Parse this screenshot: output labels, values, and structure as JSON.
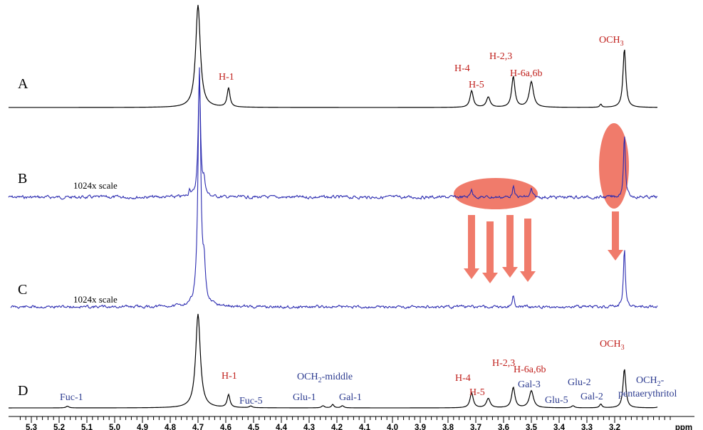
{
  "chart_data": {
    "type": "line",
    "title": "",
    "xlabel": "ppm",
    "xlim": [
      5.33,
      3.0
    ],
    "x_inverted": true,
    "x_ticks": [
      5.3,
      5.2,
      5.1,
      5.0,
      4.9,
      4.8,
      4.7,
      4.6,
      4.5,
      4.4,
      4.3,
      4.2,
      4.1,
      4.0,
      3.9,
      3.8,
      3.7,
      3.6,
      3.5,
      3.4,
      3.3,
      3.2
    ],
    "x_tick_labels": [
      "5.3",
      "5.2",
      "5.1",
      "5.0",
      "4.9",
      "4.8",
      "4.7",
      "4.6",
      "4.5",
      "4.4",
      "4.3",
      "4.2",
      "4.1",
      "4.0",
      "3.9",
      "3.8",
      "3.7",
      "3.6",
      "3.5",
      "3.4",
      "3.3",
      "3.2"
    ],
    "grid": false,
    "legend": "none",
    "spectra": [
      {
        "label": "A",
        "note": "",
        "color": "#000000",
        "peaks": [
          {
            "x": 4.7,
            "h": 1.6,
            "w": 0.01
          },
          {
            "x": 4.59,
            "h": 0.3,
            "w": 0.006
          },
          {
            "x": 3.715,
            "h": 0.26,
            "w": 0.007
          },
          {
            "x": 3.655,
            "h": 0.16,
            "w": 0.008
          },
          {
            "x": 3.565,
            "h": 0.48,
            "w": 0.007
          },
          {
            "x": 3.5,
            "h": 0.4,
            "w": 0.009
          },
          {
            "x": 3.25,
            "h": 0.05,
            "w": 0.004
          },
          {
            "x": 3.165,
            "h": 0.92,
            "w": 0.006
          }
        ]
      },
      {
        "label": "B",
        "note": "1024x scale",
        "color": "#2b2bb0",
        "peaks": [
          {
            "x": 4.695,
            "h": 1.82,
            "w": 0.005
          },
          {
            "x": 4.678,
            "h": 0.22,
            "w": 0.004
          },
          {
            "x": 4.73,
            "h": 0.12,
            "w": 0.003
          },
          {
            "x": 3.715,
            "h": 0.13,
            "w": 0.004
          },
          {
            "x": 3.565,
            "h": 0.16,
            "w": 0.004
          },
          {
            "x": 3.5,
            "h": 0.12,
            "w": 0.004
          },
          {
            "x": 3.165,
            "h": 0.92,
            "w": 0.004
          }
        ]
      },
      {
        "label": "C",
        "note": "1024x scale",
        "color": "#2b2bb0",
        "peaks": [
          {
            "x": 4.695,
            "h": 2.05,
            "w": 0.006
          },
          {
            "x": 4.678,
            "h": 0.3,
            "w": 0.005
          },
          {
            "x": 3.565,
            "h": 0.1,
            "w": 0.004
          },
          {
            "x": 3.165,
            "h": 0.5,
            "w": 0.004
          }
        ]
      },
      {
        "label": "D",
        "note": "",
        "color": "#000000",
        "peaks": [
          {
            "x": 5.17,
            "h": 0.04,
            "w": 0.006
          },
          {
            "x": 4.7,
            "h": 2.2,
            "w": 0.01
          },
          {
            "x": 4.59,
            "h": 0.3,
            "w": 0.006
          },
          {
            "x": 4.51,
            "h": 0.04,
            "w": 0.006
          },
          {
            "x": 4.25,
            "h": 0.05,
            "w": 0.006
          },
          {
            "x": 4.215,
            "h": 0.08,
            "w": 0.005
          },
          {
            "x": 4.18,
            "h": 0.05,
            "w": 0.006
          },
          {
            "x": 3.715,
            "h": 0.35,
            "w": 0.007
          },
          {
            "x": 3.655,
            "h": 0.22,
            "w": 0.008
          },
          {
            "x": 3.565,
            "h": 0.48,
            "w": 0.007
          },
          {
            "x": 3.5,
            "h": 0.4,
            "w": 0.009
          },
          {
            "x": 3.35,
            "h": 0.05,
            "w": 0.006
          },
          {
            "x": 3.25,
            "h": 0.09,
            "w": 0.005
          },
          {
            "x": 3.165,
            "h": 0.92,
            "w": 0.006
          },
          {
            "x": 3.04,
            "h": 0.04,
            "w": 0.006
          }
        ]
      }
    ],
    "annotations": {
      "A": [
        {
          "text": "H-1",
          "color": "#c0201c"
        },
        {
          "text": "H-4",
          "color": "#c0201c"
        },
        {
          "text": "H-5",
          "color": "#c0201c"
        },
        {
          "text": "H-2,3",
          "color": "#c0201c"
        },
        {
          "text": "H-6a,6b",
          "color": "#c0201c"
        },
        {
          "text": "OCH",
          "sub": "3",
          "color": "#c0201c"
        }
      ],
      "D": [
        {
          "text": "H-1",
          "color": "#c0201c"
        },
        {
          "text": "H-4",
          "color": "#c0201c"
        },
        {
          "text": "H-5",
          "color": "#c0201c"
        },
        {
          "text": "H-2,3",
          "color": "#c0201c"
        },
        {
          "text": "H-6a,6b",
          "color": "#c0201c"
        },
        {
          "text": "OCH",
          "sub": "3",
          "color": "#c0201c"
        },
        {
          "text": "Fuc-1",
          "color": "#2b3a8f"
        },
        {
          "text": "Fuc-5",
          "color": "#2b3a8f"
        },
        {
          "text": "OCH",
          "sub": "2",
          "suffix": "-middle",
          "color": "#2b3a8f"
        },
        {
          "text": "Glu-1",
          "color": "#2b3a8f"
        },
        {
          "text": "Gal-1",
          "color": "#2b3a8f"
        },
        {
          "text": "Gal-3",
          "color": "#2b3a8f"
        },
        {
          "text": "Glu-5",
          "color": "#2b3a8f"
        },
        {
          "text": "Glu-2",
          "color": "#2b3a8f"
        },
        {
          "text": "Gal-2",
          "color": "#2b3a8f"
        },
        {
          "text": "OCH",
          "sub": "2",
          "suffix": "-",
          "color": "#2b3a8f"
        },
        {
          "text": "pentaerythritol",
          "color": "#2b3a8f"
        }
      ]
    },
    "highlight_color": "#f07b6b",
    "axis_color": "#000000"
  }
}
